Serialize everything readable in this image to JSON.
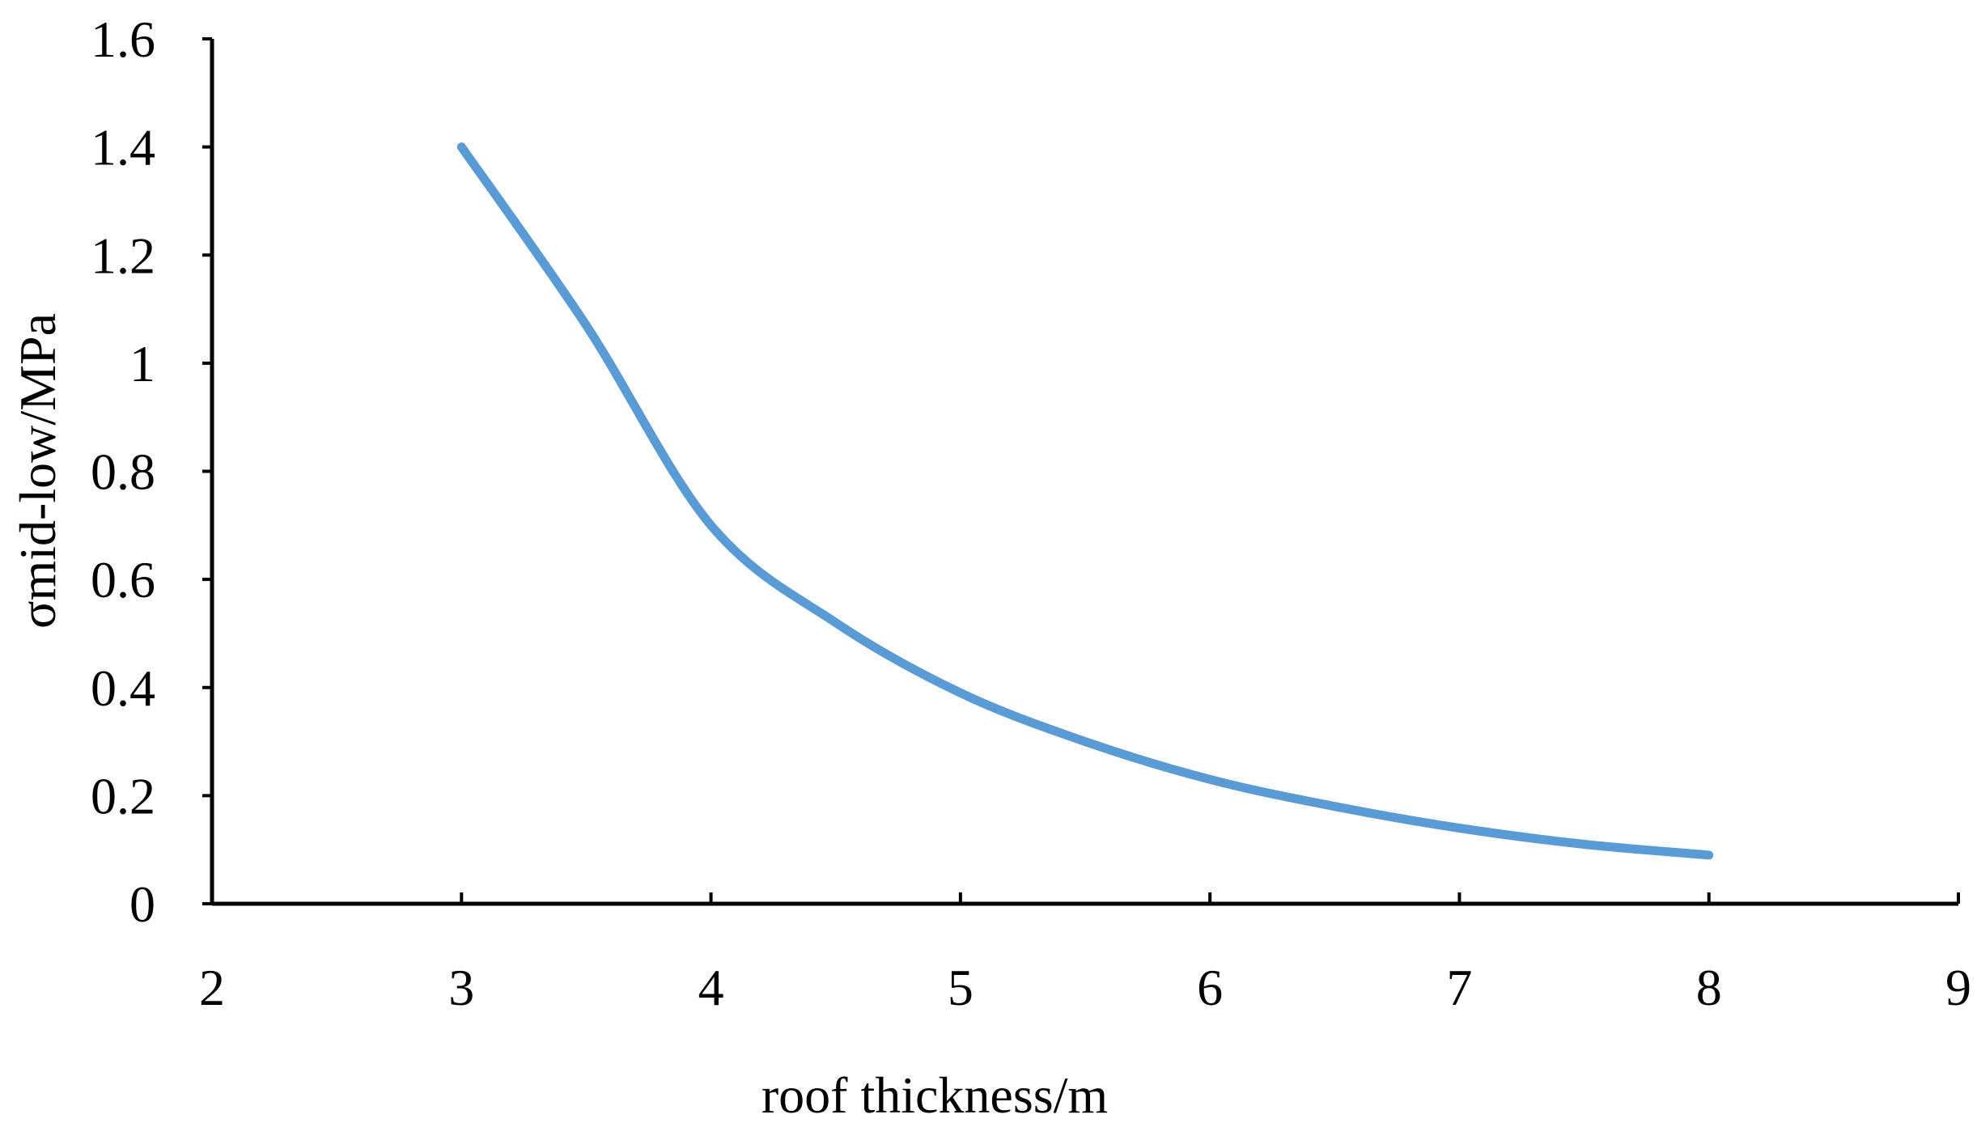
{
  "chart_data": {
    "type": "line",
    "title": "",
    "xlabel": "roof thickness/m",
    "ylabel": "σmid-low/MPa",
    "xlim": [
      2,
      9
    ],
    "ylim": [
      0,
      1.6
    ],
    "x_ticks": [
      "2",
      "3",
      "4",
      "5",
      "6",
      "7",
      "8",
      "9"
    ],
    "y_ticks": [
      "0",
      "0.2",
      "0.4",
      "0.6",
      "0.8",
      "1",
      "1.2",
      "1.4",
      "1.6"
    ],
    "grid": false,
    "legend": "none",
    "series": [
      {
        "color": "#5b9bd5",
        "smooth": true,
        "points": [
          [
            3.0,
            1.4
          ],
          [
            3.5,
            1.07
          ],
          [
            4.0,
            0.7
          ],
          [
            4.5,
            0.52
          ],
          [
            5.0,
            0.39
          ],
          [
            5.5,
            0.3
          ],
          [
            6.0,
            0.23
          ],
          [
            6.5,
            0.18
          ],
          [
            7.0,
            0.14
          ],
          [
            7.5,
            0.11
          ],
          [
            8.0,
            0.09
          ]
        ]
      }
    ]
  }
}
